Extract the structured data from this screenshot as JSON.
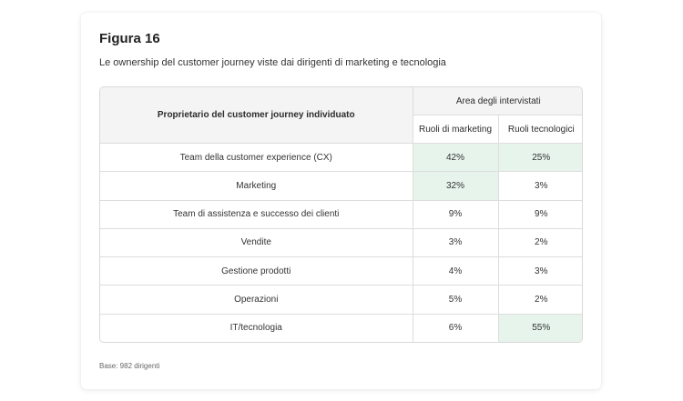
{
  "figure": {
    "title": "Figura 16",
    "subtitle": "Le ownership del customer journey viste dai dirigenti di marketing e tecnologia",
    "base_note": "Base: 982 dirigenti"
  },
  "table": {
    "owner_header": "Proprietario del customer journey individuato",
    "group_header": "Area degli intervistati",
    "col_marketing": "Ruoli di marketing",
    "col_tech": "Ruoli tecnologici",
    "highlight_color": "#e6f4ec",
    "rows": [
      {
        "label": "Team della customer experience (CX)",
        "marketing": "42%",
        "tech": "25%"
      },
      {
        "label": "Marketing",
        "marketing": "32%",
        "tech": "3%"
      },
      {
        "label": "Team di assistenza e successo dei clienti",
        "marketing": "9%",
        "tech": "9%"
      },
      {
        "label": "Vendite",
        "marketing": "3%",
        "tech": "2%"
      },
      {
        "label": "Gestione prodotti",
        "marketing": "4%",
        "tech": "3%"
      },
      {
        "label": "Operazioni",
        "marketing": "5%",
        "tech": "2%"
      },
      {
        "label": "IT/tecnologia",
        "marketing": "6%",
        "tech": "55%"
      }
    ]
  }
}
